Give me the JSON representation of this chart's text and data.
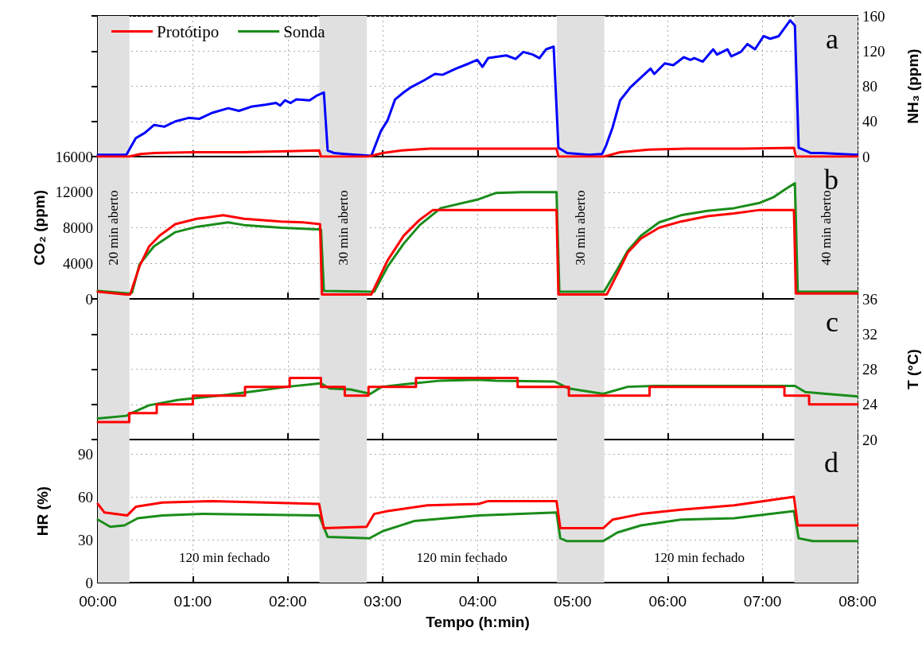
{
  "chart_data": [
    {
      "type": "line",
      "title": "a",
      "ylabel": "NH₃ (ppm)",
      "xlim": [
        0,
        8
      ],
      "xticks": [
        {
          "value": 0,
          "label": null
        },
        {
          "value": 1,
          "label": null
        },
        {
          "value": 2,
          "label": null
        },
        {
          "value": 3,
          "label": null
        },
        {
          "value": 4,
          "label": null
        },
        {
          "value": 5,
          "label": null
        },
        {
          "value": 6,
          "label": null
        },
        {
          "value": 7,
          "label": null
        },
        {
          "value": 8,
          "label": null
        }
      ],
      "ylim": [
        0,
        160
      ],
      "yticks": [
        0,
        40,
        80,
        120,
        160
      ],
      "grid": true,
      "legend": "top left",
      "tick_labels": "y",
      "bands": [
        {
          "axis": "x",
          "from": 0,
          "to": 0.333,
          "color": "#e0e0e0"
        },
        {
          "axis": "x",
          "from": 2.333,
          "to": 2.833,
          "color": "#e0e0e0"
        },
        {
          "axis": "x",
          "from": 4.833,
          "to": 5.333,
          "color": "#e0e0e0"
        },
        {
          "axis": "x",
          "from": 7.333,
          "to": 8,
          "color": "#e0e0e0"
        }
      ],
      "series": [
        {
          "name": "Protótipo",
          "color": "#ff0000",
          "x": [
            0,
            0.33,
            0.45,
            0.6,
            1.0,
            1.5,
            2.0,
            2.33,
            2.35,
            2.85,
            3.0,
            3.2,
            3.5,
            4.0,
            4.5,
            4.83,
            4.85,
            5.33,
            5.5,
            5.8,
            6.2,
            6.8,
            7.33,
            7.35,
            8
          ],
          "values": [
            0,
            0,
            3,
            4,
            5,
            5,
            6,
            7,
            0,
            0,
            4,
            7,
            9,
            9,
            9,
            9,
            0,
            0,
            5,
            8,
            9,
            9,
            10,
            0,
            0
          ]
        },
        {
          "color": "#0000ff",
          "x": [
            0,
            0.3,
            0.4,
            0.495,
            0.593,
            0.7,
            0.816,
            0.955,
            1.07,
            1.21,
            1.374,
            1.486,
            1.625,
            1.765,
            1.876,
            1.92,
            1.97,
            2.03,
            2.09,
            2.23,
            2.3,
            2.38,
            2.42,
            2.49,
            2.6,
            2.88,
            2.98,
            3.05,
            3.13,
            3.22,
            3.3,
            3.44,
            3.55,
            3.63,
            3.77,
            3.91,
            3.996,
            4.05,
            4.11,
            4.3,
            4.4,
            4.48,
            4.58,
            4.65,
            4.72,
            4.8,
            4.85,
            4.94,
            5.17,
            5.31,
            5.35,
            5.42,
            5.5,
            5.61,
            5.72,
            5.82,
            5.86,
            5.97,
            6.06,
            6.17,
            6.24,
            6.28,
            6.37,
            6.48,
            6.52,
            6.63,
            6.67,
            6.77,
            6.84,
            6.92,
            7.01,
            7.08,
            7.17,
            7.29,
            7.34,
            7.38,
            7.51,
            7.62,
            7.82,
            8.0
          ],
          "values": [
            2,
            2,
            21,
            27,
            36,
            34,
            40,
            44,
            43,
            50,
            55,
            52,
            57,
            59,
            61,
            58,
            64,
            61,
            65,
            64,
            69,
            73,
            7,
            4,
            3,
            1,
            29,
            41,
            65,
            73,
            79,
            87,
            94,
            93,
            100,
            106,
            110,
            102,
            112,
            115,
            111,
            119,
            116,
            112,
            122,
            125,
            10,
            4,
            2,
            3,
            12,
            33,
            64,
            79,
            90,
            100,
            94,
            106,
            104,
            113,
            110,
            112,
            108,
            122,
            116,
            122,
            114,
            119,
            128,
            122,
            137,
            134,
            137,
            155,
            149,
            10,
            4,
            4,
            3,
            2
          ]
        }
      ]
    },
    {
      "type": "line",
      "title": "b",
      "ylabel": "CO₂ (ppm)",
      "xlim": [
        0,
        8
      ],
      "xticks": [
        {
          "value": 0,
          "label": null
        },
        {
          "value": 1,
          "label": null
        },
        {
          "value": 2,
          "label": null
        },
        {
          "value": 3,
          "label": null
        },
        {
          "value": 4,
          "label": null
        },
        {
          "value": 5,
          "label": null
        },
        {
          "value": 6,
          "label": null
        },
        {
          "value": 7,
          "label": null
        },
        {
          "value": 8,
          "label": null
        }
      ],
      "ylim": [
        0,
        16000
      ],
      "yticks": [
        0,
        4000,
        8000,
        12000,
        16000
      ],
      "grid": true,
      "tick_labels": "y",
      "bands": [
        {
          "axis": "x",
          "from": 0,
          "to": 0.333,
          "label": "20 min aberto",
          "color": "#e0e0e0"
        },
        {
          "axis": "x",
          "from": 2.333,
          "to": 2.833,
          "label": "30 min aberto",
          "color": "#e0e0e0"
        },
        {
          "axis": "x",
          "from": 4.833,
          "to": 5.333,
          "label": "30 min aberto",
          "color": "#e0e0e0"
        },
        {
          "axis": "x",
          "from": 7.333,
          "to": 8,
          "label": "40 min aberto",
          "color": "#e0e0e0"
        }
      ],
      "series": [
        {
          "name": "Protótipo",
          "color": "#ff0000",
          "x": [
            0,
            0.3,
            0.34,
            0.44,
            0.54,
            0.65,
            0.816,
            1.04,
            1.32,
            1.54,
            1.93,
            2.16,
            2.34,
            2.36,
            2.85,
            2.88,
            3.05,
            3.22,
            3.39,
            3.53,
            4.83,
            4.85,
            5.33,
            5.36,
            5.47,
            5.58,
            5.72,
            5.91,
            6.14,
            6.42,
            6.7,
            6.97,
            7.33,
            7.35,
            8
          ],
          "values": [
            800,
            500,
            500,
            3700,
            5900,
            7100,
            8400,
            9000,
            9400,
            9000,
            8700,
            8600,
            8400,
            500,
            500,
            500,
            4300,
            7100,
            8900,
            10000,
            10000,
            500,
            500,
            500,
            2800,
            5200,
            6800,
            8000,
            8700,
            9300,
            9600,
            10000,
            10000,
            600,
            600
          ]
        },
        {
          "name": "Sonda",
          "color": "#1a8c1a",
          "x": [
            0,
            0.33,
            0.36,
            0.44,
            0.59,
            0.816,
            1.04,
            1.37,
            1.54,
            1.93,
            2.35,
            2.38,
            2.88,
            2.91,
            3.05,
            3.22,
            3.39,
            3.61,
            4.01,
            4.19,
            4.47,
            4.83,
            4.86,
            5.33,
            5.47,
            5.58,
            5.72,
            5.91,
            6.14,
            6.42,
            6.7,
            6.97,
            7.11,
            7.25,
            7.34,
            7.37,
            8
          ],
          "values": [
            900,
            600,
            700,
            3900,
            5900,
            7500,
            8100,
            8600,
            8300,
            8000,
            7800,
            900,
            800,
            800,
            3600,
            6200,
            8300,
            10200,
            11200,
            11900,
            12000,
            12000,
            800,
            800,
            3300,
            5400,
            7100,
            8600,
            9400,
            9900,
            10200,
            10800,
            11400,
            12400,
            13000,
            800,
            800
          ]
        }
      ]
    },
    {
      "type": "line",
      "title": "c",
      "ylabel": "T (°C)",
      "xlim": [
        0,
        8
      ],
      "xticks": [
        {
          "value": 0,
          "label": null
        },
        {
          "value": 1,
          "label": null
        },
        {
          "value": 2,
          "label": null
        },
        {
          "value": 3,
          "label": null
        },
        {
          "value": 4,
          "label": null
        },
        {
          "value": 5,
          "label": null
        },
        {
          "value": 6,
          "label": null
        },
        {
          "value": 7,
          "label": null
        },
        {
          "value": 8,
          "label": null
        }
      ],
      "ylim": [
        20,
        36
      ],
      "yticks": [
        20,
        24,
        28,
        32,
        36
      ],
      "grid": true,
      "tick_labels": "y",
      "bands": [
        {
          "axis": "x",
          "from": 0,
          "to": 0.333,
          "color": "#e0e0e0"
        },
        {
          "axis": "x",
          "from": 2.333,
          "to": 2.833,
          "color": "#e0e0e0"
        },
        {
          "axis": "x",
          "from": 4.833,
          "to": 5.333,
          "color": "#e0e0e0"
        },
        {
          "axis": "x",
          "from": 7.333,
          "to": 8,
          "color": "#e0e0e0"
        }
      ],
      "series": [
        {
          "name": "Protótipo",
          "type": "step",
          "color": "#ff0000",
          "x": [
            0,
            0.33,
            0.62,
            1.0,
            1.55,
            2.02,
            2.35,
            2.6,
            2.85,
            3.35,
            4.42,
            4.96,
            5.81,
            7.23,
            7.49,
            8
          ],
          "values": [
            22,
            23,
            24,
            25,
            26,
            27,
            26,
            25,
            26,
            27,
            26,
            25,
            26,
            25,
            24,
            24
          ]
        },
        {
          "name": "Sonda",
          "color": "#1a8c1a",
          "x": [
            0,
            0.3,
            0.35,
            0.54,
            0.84,
            1.37,
            1.65,
            1.99,
            2.35,
            2.44,
            2.66,
            2.87,
            2.99,
            3.33,
            3.61,
            4.01,
            4.19,
            4.81,
            4.96,
            5.32,
            5.58,
            5.86,
            7.34,
            7.45,
            7.67,
            8.0
          ],
          "values": [
            22.4,
            22.7,
            23,
            23.9,
            24.5,
            25.1,
            25.5,
            26.0,
            26.4,
            25.8,
            25.7,
            25.2,
            26.0,
            26.4,
            26.7,
            26.8,
            26.7,
            26.6,
            25.8,
            25.2,
            26.0,
            26.1,
            26.1,
            25.4,
            25.2,
            24.9
          ]
        }
      ]
    },
    {
      "type": "line",
      "title": "d",
      "ylabel": "HR (%)",
      "xlabel": "Tempo (h:min)",
      "xlim": [
        0,
        8
      ],
      "xticks": [
        {
          "value": 0,
          "label": "00:00"
        },
        {
          "value": 1,
          "label": "01:00"
        },
        {
          "value": 2,
          "label": "02:00"
        },
        {
          "value": 3,
          "label": "03:00"
        },
        {
          "value": 4,
          "label": "04:00"
        },
        {
          "value": 5,
          "label": "05:00"
        },
        {
          "value": 6,
          "label": "06:00"
        },
        {
          "value": 7,
          "label": "07:00"
        },
        {
          "value": 8,
          "label": "08:00"
        }
      ],
      "ylim": [
        0,
        100
      ],
      "yticks": [
        0,
        30,
        60,
        90
      ],
      "grid": true,
      "annotations": [
        "120 min fechado",
        "120 min fechado",
        "120 min fechado"
      ],
      "bands": [
        {
          "axis": "x",
          "from": 0,
          "to": 0.333,
          "color": "#e0e0e0"
        },
        {
          "axis": "x",
          "from": 2.333,
          "to": 2.833,
          "color": "#e0e0e0"
        },
        {
          "axis": "x",
          "from": 4.833,
          "to": 5.333,
          "color": "#e0e0e0"
        },
        {
          "axis": "x",
          "from": 7.333,
          "to": 8,
          "color": "#e0e0e0"
        }
      ],
      "series": [
        {
          "name": "Protótipo",
          "color": "#ff0000",
          "x": [
            0,
            0.07,
            0.31,
            0.4,
            0.68,
            1.21,
            2.33,
            2.38,
            2.83,
            2.91,
            3.05,
            3.47,
            4.01,
            4.11,
            4.83,
            4.87,
            5.32,
            5.42,
            5.72,
            6.14,
            6.7,
            7.01,
            7.33,
            7.37,
            8.0
          ],
          "values": [
            55,
            49,
            47,
            53,
            56,
            57,
            55,
            38,
            39,
            48,
            50,
            54,
            55,
            57,
            57,
            38,
            38,
            44,
            48,
            51,
            54,
            57,
            60,
            40,
            40
          ]
        },
        {
          "name": "Sonda",
          "color": "#1a8c1a",
          "x": [
            0,
            0.13,
            0.28,
            0.42,
            0.68,
            1.1,
            2.33,
            2.42,
            2.86,
            3.0,
            3.33,
            4.01,
            4.83,
            4.87,
            4.94,
            5.32,
            5.47,
            5.72,
            6.14,
            6.7,
            7.33,
            7.38,
            7.53,
            8.0
          ],
          "values": [
            44,
            39,
            40,
            45,
            47,
            48,
            47,
            32,
            31,
            36,
            43,
            47,
            49,
            31,
            29,
            29,
            35,
            40,
            44,
            45,
            50,
            31,
            29,
            29
          ]
        }
      ]
    }
  ]
}
